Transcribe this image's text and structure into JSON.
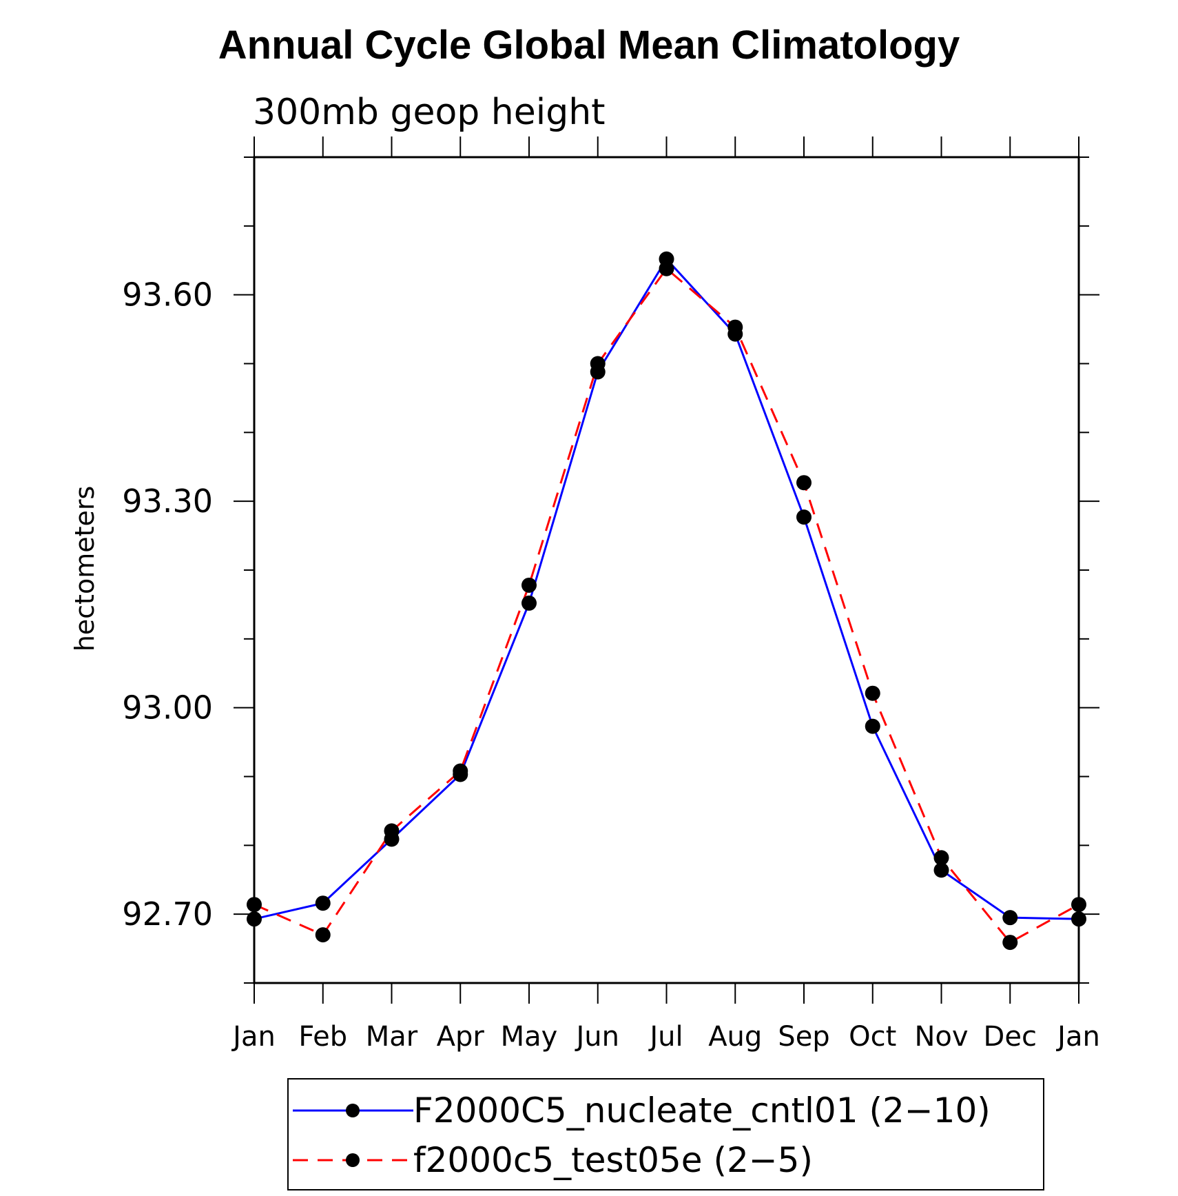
{
  "chart_data": {
    "type": "line",
    "title": "Annual Cycle Global Mean Climatology",
    "subtitle": "300mb geop height",
    "xlabel": "",
    "ylabel": "hectometers",
    "categories": [
      "Jan",
      "Feb",
      "Mar",
      "Apr",
      "May",
      "Jun",
      "Jul",
      "Aug",
      "Sep",
      "Oct",
      "Nov",
      "Dec",
      "Jan"
    ],
    "yticks": [
      "92.70",
      "93.00",
      "93.30",
      "93.60"
    ],
    "ylim": [
      92.6,
      93.8
    ],
    "series": [
      {
        "name": "F2000C5_nucleate_cntl01 (2−10)",
        "color": "#0000ff",
        "style": "solid",
        "marker": "filled-circle",
        "values": [
          92.693,
          92.716,
          92.809,
          92.903,
          93.152,
          93.488,
          93.652,
          93.543,
          93.277,
          92.973,
          92.764,
          92.695,
          92.693
        ]
      },
      {
        "name": "f2000c5_test05e (2−5)",
        "color": "#ff0000",
        "style": "dashed",
        "marker": "filled-circle",
        "values": [
          92.714,
          92.67,
          92.821,
          92.908,
          93.178,
          93.5,
          93.638,
          93.553,
          93.327,
          93.021,
          92.782,
          92.659,
          92.714
        ]
      }
    ],
    "grid": false,
    "legend_position": "bottom"
  }
}
